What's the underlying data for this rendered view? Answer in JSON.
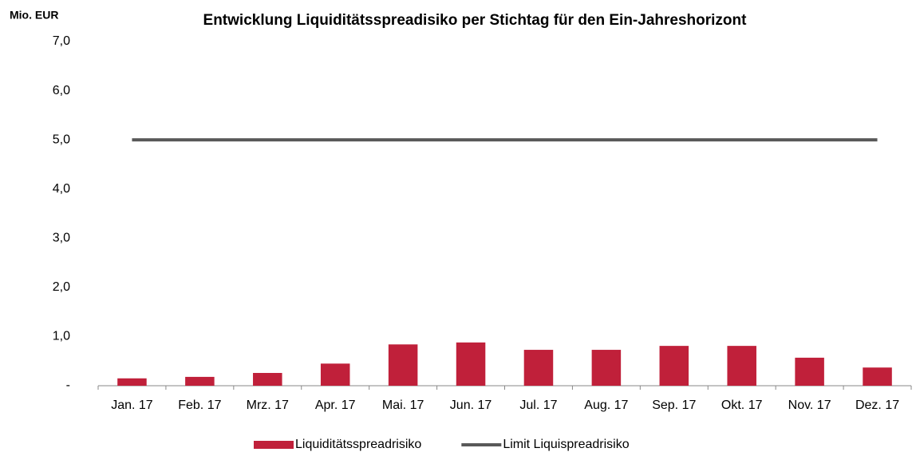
{
  "chart_data": {
    "type": "bar",
    "title": "Entwicklung Liquiditätsspreadisiko  per Stichtag  für den Ein-Jahreshorizont",
    "y_label": "Mio. EUR",
    "categories": [
      "Jan. 17",
      "Feb. 17",
      "Mrz. 17",
      "Apr. 17",
      "Mai. 17",
      "Jun. 17",
      "Jul. 17",
      "Aug. 17",
      "Sep. 17",
      "Okt. 17",
      "Nov. 17",
      "Dez. 17"
    ],
    "series": [
      {
        "name": "Liquiditätsspreadrisiko",
        "type": "bar",
        "color": "#c0203a",
        "values": [
          0.15,
          0.18,
          0.26,
          0.45,
          0.84,
          0.88,
          0.73,
          0.73,
          0.81,
          0.81,
          0.57,
          0.37
        ]
      },
      {
        "name": "Limit Liquispreadrisiko",
        "type": "line",
        "color": "#595959",
        "values": [
          5,
          5,
          5,
          5,
          5,
          5,
          5,
          5,
          5,
          5,
          5,
          5
        ]
      }
    ],
    "ylim": [
      0,
      7
    ],
    "yticks": [
      {
        "value": 0,
        "label": "-"
      },
      {
        "value": 1,
        "label": "1,0"
      },
      {
        "value": 2,
        "label": "2,0"
      },
      {
        "value": 3,
        "label": "3,0"
      },
      {
        "value": 4,
        "label": "4,0"
      },
      {
        "value": 5,
        "label": "5,0"
      },
      {
        "value": 6,
        "label": "6,0"
      },
      {
        "value": 7,
        "label": "7,0"
      }
    ],
    "grid": false,
    "legend": "bottom"
  }
}
